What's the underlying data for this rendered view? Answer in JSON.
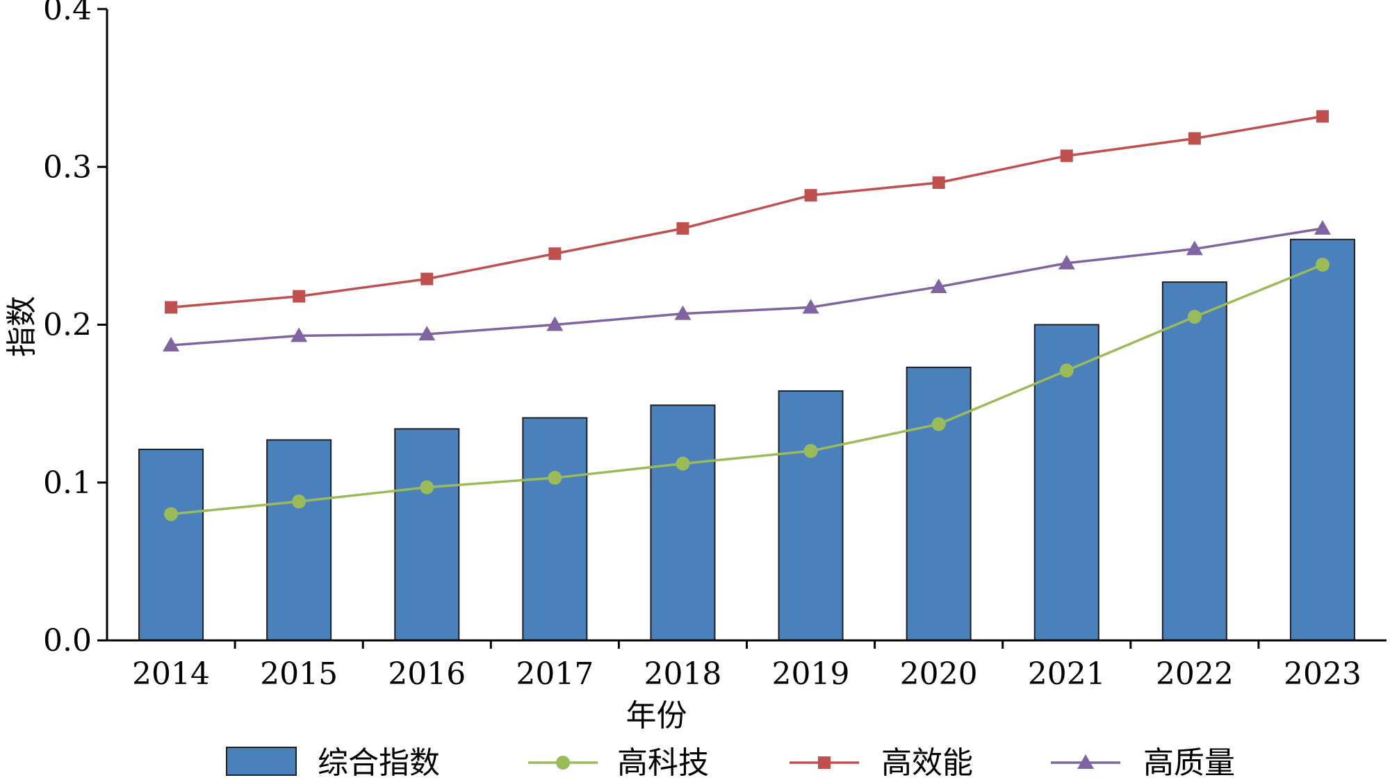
{
  "chart_data": {
    "type": "bar",
    "title": "",
    "xlabel": "年份",
    "ylabel": "指数",
    "ylim": [
      0,
      0.4
    ],
    "yticks": [
      "0.0",
      "0.1",
      "0.2",
      "0.3",
      "0.4"
    ],
    "ytick_values": [
      0,
      0.1,
      0.2,
      0.3,
      0.4
    ],
    "categories": [
      "2014",
      "2015",
      "2016",
      "2017",
      "2018",
      "2019",
      "2020",
      "2021",
      "2022",
      "2023"
    ],
    "grid": false,
    "legend_position": "bottom",
    "series": [
      {
        "name": "综合指数",
        "kind": "bar",
        "color": "#4a81bd",
        "values": [
          0.121,
          0.127,
          0.134,
          0.141,
          0.149,
          0.158,
          0.173,
          0.2,
          0.227,
          0.254
        ]
      },
      {
        "name": "高科技",
        "kind": "line",
        "marker": "circle",
        "color": "#9bbb59",
        "values": [
          0.08,
          0.088,
          0.097,
          0.103,
          0.112,
          0.12,
          0.137,
          0.171,
          0.205,
          0.238
        ]
      },
      {
        "name": "高效能",
        "kind": "line",
        "marker": "square",
        "color": "#c0504d",
        "values": [
          0.211,
          0.218,
          0.229,
          0.245,
          0.261,
          0.282,
          0.29,
          0.307,
          0.318,
          0.332
        ]
      },
      {
        "name": "高质量",
        "kind": "line",
        "marker": "triangle",
        "color": "#8064a2",
        "values": [
          0.187,
          0.193,
          0.194,
          0.2,
          0.207,
          0.211,
          0.224,
          0.239,
          0.248,
          0.261
        ]
      }
    ]
  }
}
